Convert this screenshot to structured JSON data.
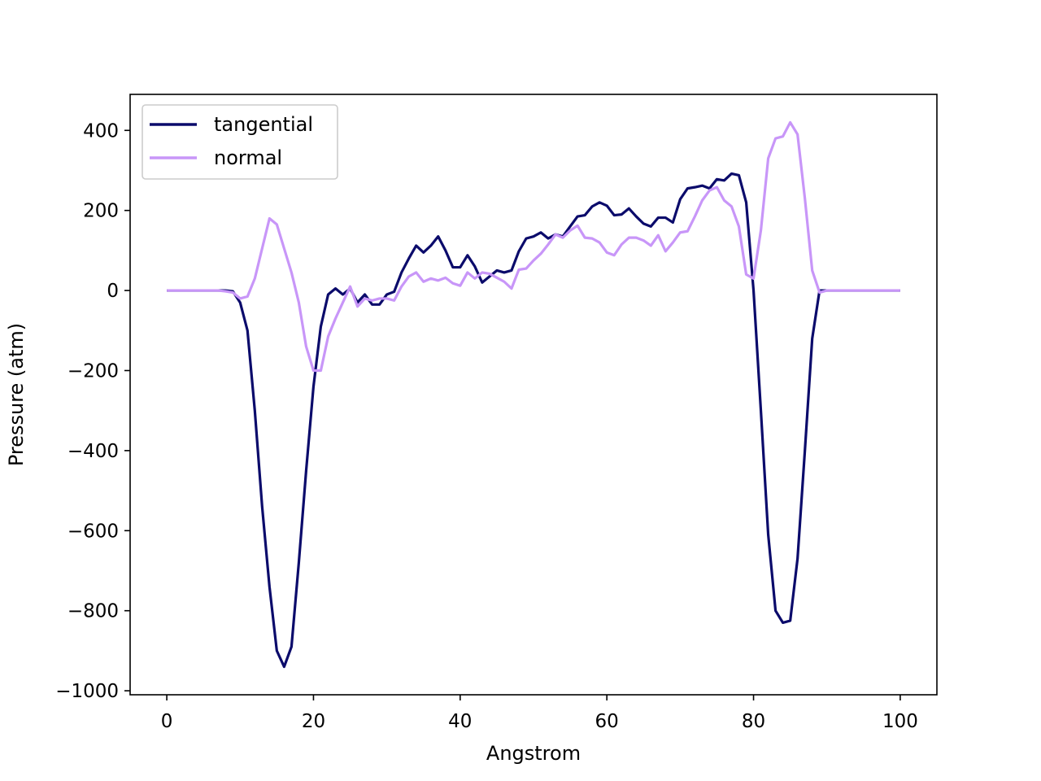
{
  "chart_data": {
    "type": "line",
    "title": "",
    "xlabel": "Angstrom",
    "ylabel": "Pressure (atm)",
    "xlim": [
      -5,
      105
    ],
    "ylim": [
      -1010,
      490
    ],
    "xticks": [
      0,
      20,
      40,
      60,
      80,
      100
    ],
    "yticks": [
      -1000,
      -800,
      -600,
      -400,
      -200,
      0,
      200,
      400
    ],
    "grid": false,
    "legend_position": "top-left",
    "x": [
      0,
      1,
      2,
      3,
      4,
      5,
      6,
      7,
      8,
      9,
      10,
      11,
      12,
      13,
      14,
      15,
      16,
      17,
      18,
      19,
      20,
      21,
      22,
      23,
      24,
      25,
      26,
      27,
      28,
      29,
      30,
      31,
      32,
      33,
      34,
      35,
      36,
      37,
      38,
      39,
      40,
      41,
      42,
      43,
      44,
      45,
      46,
      47,
      48,
      49,
      50,
      51,
      52,
      53,
      54,
      55,
      56,
      57,
      58,
      59,
      60,
      61,
      62,
      63,
      64,
      65,
      66,
      67,
      68,
      69,
      70,
      71,
      72,
      73,
      74,
      75,
      76,
      77,
      78,
      79,
      80,
      81,
      82,
      83,
      84,
      85,
      86,
      87,
      88,
      89,
      90,
      91,
      92,
      93,
      94,
      95,
      96,
      97,
      98,
      99,
      100
    ],
    "series": [
      {
        "name": "tangential",
        "color": "#0b0b6b",
        "values": [
          0,
          0,
          0,
          0,
          0,
          0,
          0,
          0,
          0,
          -2,
          -30,
          -100,
          -300,
          -540,
          -740,
          -900,
          -940,
          -890,
          -680,
          -450,
          -240,
          -90,
          -10,
          5,
          -10,
          5,
          -30,
          -10,
          -35,
          -35,
          -10,
          -3,
          45,
          80,
          112,
          95,
          112,
          135,
          100,
          58,
          58,
          88,
          60,
          20,
          35,
          50,
          45,
          50,
          98,
          130,
          135,
          145,
          130,
          140,
          135,
          160,
          185,
          188,
          210,
          220,
          212,
          188,
          190,
          205,
          185,
          167,
          160,
          182,
          182,
          170,
          228,
          255,
          258,
          262,
          255,
          278,
          275,
          292,
          288,
          220,
          0,
          -300,
          -610,
          -800,
          -830,
          -825,
          -670,
          -400,
          -120,
          0,
          0,
          0,
          0,
          0,
          0,
          0,
          0,
          0,
          0,
          0,
          0
        ]
      },
      {
        "name": "normal",
        "color": "#c896f8",
        "values": [
          0,
          0,
          0,
          0,
          0,
          0,
          0,
          0,
          -2,
          -5,
          -20,
          -15,
          30,
          105,
          180,
          165,
          105,
          45,
          -30,
          -140,
          -200,
          -200,
          -115,
          -70,
          -30,
          10,
          -40,
          -20,
          -25,
          -20,
          -20,
          -25,
          10,
          35,
          45,
          22,
          30,
          25,
          32,
          18,
          12,
          45,
          30,
          45,
          42,
          32,
          22,
          5,
          52,
          55,
          75,
          92,
          115,
          140,
          132,
          150,
          162,
          132,
          130,
          120,
          95,
          88,
          115,
          132,
          132,
          125,
          112,
          138,
          98,
          120,
          145,
          148,
          185,
          225,
          250,
          258,
          225,
          210,
          160,
          40,
          30,
          150,
          330,
          380,
          385,
          420,
          390,
          230,
          50,
          -5,
          0,
          0,
          0,
          0,
          0,
          0,
          0,
          0,
          0,
          0,
          0
        ]
      }
    ]
  }
}
